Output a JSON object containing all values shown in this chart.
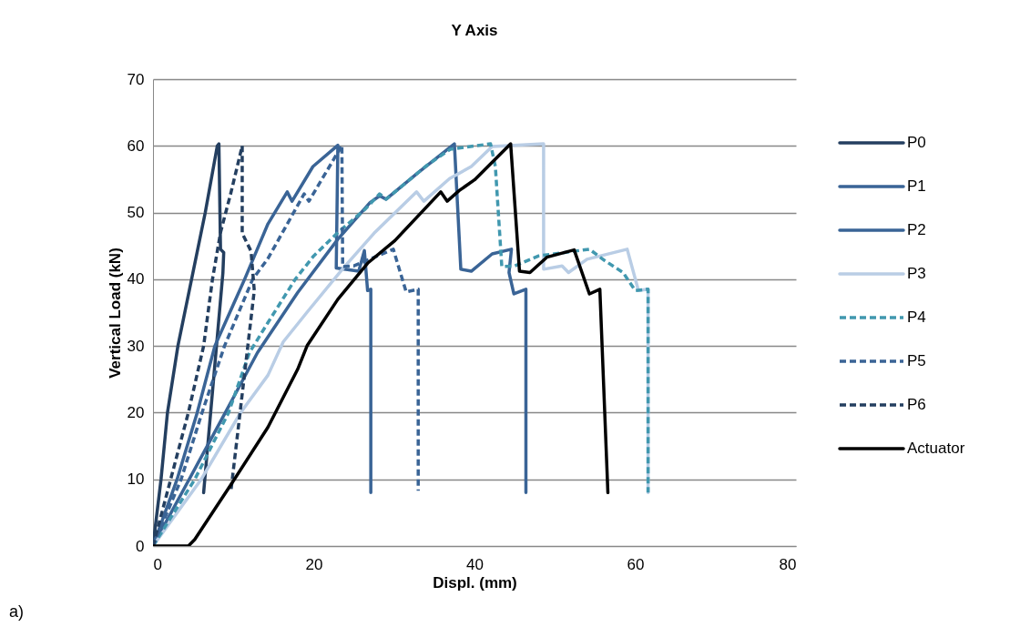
{
  "chart_data": {
    "type": "line",
    "title": "Y Axis",
    "xlabel": "Displ. (mm)",
    "ylabel": "Vertical Load (kN)",
    "xlim": [
      0,
      80
    ],
    "xticks": [
      0,
      20,
      40,
      60,
      80
    ],
    "ylim": [
      0,
      70
    ],
    "yticks": [
      0,
      10,
      20,
      30,
      40,
      50,
      60,
      70
    ],
    "grid": "y",
    "legend": "right",
    "annotations": [
      "a)"
    ],
    "series": [
      {
        "name": "P0",
        "color": "#243f60",
        "line_style": "solid",
        "x": [
          0,
          1.0,
          1.8,
          3.1,
          4.8,
          6.5,
          8.0,
          8.2,
          8.4,
          8.8,
          8.7,
          6.3
        ],
        "values": [
          0,
          10,
          20,
          30,
          40,
          50,
          60,
          60.3,
          44.5,
          44,
          41,
          8
        ]
      },
      {
        "name": "P1",
        "color": "#3a6496",
        "line_style": "solid",
        "x": [
          0,
          3.0,
          5.5,
          7.7,
          11.4,
          14.3,
          16.7,
          17.3,
          19.9,
          23.0,
          22.8,
          25.6,
          26.3,
          26.7,
          27.1,
          27.1
        ],
        "values": [
          0,
          10,
          20,
          30,
          40,
          48.3,
          53.1,
          51.7,
          56.9,
          60.1,
          41.7,
          41.2,
          44.3,
          38.3,
          38.5,
          8
        ]
      },
      {
        "name": "P2",
        "color": "#3a6496",
        "line_style": "solid",
        "x": [
          0,
          4.5,
          9.0,
          13.0,
          18.0,
          23.0,
          27.0,
          28.2,
          29.0,
          33.0,
          37.5,
          38.3,
          39.6,
          42.2,
          44.6,
          44.3,
          44.9,
          46.4,
          46.4
        ],
        "values": [
          0,
          10,
          20,
          29,
          38,
          46,
          51.5,
          52.5,
          52,
          56,
          60.3,
          41.5,
          41.2,
          43.8,
          44.5,
          41.0,
          37.8,
          38.5,
          8
        ]
      },
      {
        "name": "P3",
        "color": "#b9cde5",
        "line_style": "solid",
        "x": [
          0,
          6.0,
          10.9,
          14.3,
          16.2,
          19.2,
          23.7,
          27.5,
          32.8,
          33.7,
          36.9,
          39.6,
          42.2,
          48.6,
          48.6,
          50.9,
          51.7,
          54.0,
          59.0,
          60.4,
          61.6,
          61.6
        ],
        "values": [
          0,
          10,
          20,
          25.6,
          30.6,
          35.1,
          41.7,
          46.9,
          53.1,
          51.7,
          55.1,
          56.9,
          59.9,
          60.3,
          41.5,
          42,
          41.0,
          43,
          44.5,
          38.3,
          38.5,
          8
        ]
      },
      {
        "name": "P4",
        "color": "#4198af",
        "line_style": "dashed",
        "x": [
          0,
          5.2,
          9.4,
          12.0,
          14.3,
          17.7,
          20.0,
          23.0,
          26.4,
          28.2,
          29.0,
          31.0,
          34.0,
          37.0,
          42.0,
          42.6,
          43.4,
          45.0,
          48.0,
          54.3,
          56.2,
          58.5,
          60.0,
          61.6,
          61.6
        ],
        "values": [
          0,
          10,
          20,
          29,
          33.5,
          40,
          43.5,
          47,
          50.5,
          52.8,
          52,
          54,
          57,
          59.5,
          60.3,
          56.9,
          41.9,
          42,
          43.5,
          44.5,
          42.8,
          41.0,
          38.3,
          38.5,
          8
        ]
      },
      {
        "name": "P5",
        "color": "#3a6496",
        "line_style": "dashed",
        "x": [
          0,
          3.5,
          6.1,
          8.9,
          12.4,
          14.3,
          18.8,
          19.4,
          22.4,
          23.5,
          23.6,
          25.0,
          29.9,
          31.5,
          33.0,
          33.0
        ],
        "values": [
          0,
          10,
          20,
          30,
          40,
          43.1,
          52.8,
          51.7,
          57.8,
          60.1,
          41.9,
          42,
          44.5,
          38.1,
          38.5,
          8.3
        ]
      },
      {
        "name": "P6",
        "color": "#243f60",
        "line_style": "dashed",
        "x": [
          0,
          2.2,
          4.4,
          6.3,
          7.4,
          8.4,
          9.7,
          11.1,
          11.1,
          12.2,
          12.6,
          9.7
        ],
        "values": [
          0,
          10,
          20,
          30,
          40,
          47,
          53,
          60,
          46.9,
          44.2,
          38.3,
          8.3
        ]
      },
      {
        "name": "Actuator",
        "color": "#000000",
        "line_style": "solid",
        "x": [
          0,
          4.4,
          5.2,
          9.7,
          14.3,
          18.0,
          19.2,
          23.0,
          26.7,
          30.1,
          35.8,
          36.6,
          38.1,
          40.0,
          44.5,
          45.6,
          46.9,
          49.0,
          52.4,
          54.3,
          55.6,
          56.6
        ],
        "values": [
          0,
          0,
          1,
          9.2,
          17.8,
          26.5,
          30.1,
          37.0,
          42.4,
          45.8,
          53.1,
          51.7,
          53.3,
          54.9,
          60.3,
          41.2,
          41.0,
          43.3,
          44.4,
          37.8,
          38.5,
          8
        ]
      }
    ]
  }
}
